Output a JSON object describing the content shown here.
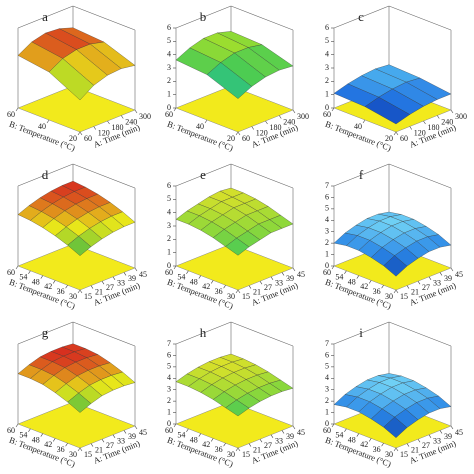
{
  "chart_data": [
    {
      "type": "surface",
      "label": "a",
      "xlabel": "A: Time (min)",
      "ylabel": "B: Temperature (°C)",
      "x": [
        60,
        120,
        180,
        240,
        300
      ],
      "y": [
        20,
        40,
        60
      ],
      "xticks": [
        60,
        120,
        180,
        240,
        300
      ],
      "yticks": [
        20,
        40,
        60
      ],
      "zlim": [
        0,
        7
      ],
      "colormap": [
        "#2db34a",
        "#e8e61a",
        "#d7301f"
      ],
      "values": [
        [
          2.8,
          3.6,
          4.0,
          4.1,
          3.9
        ],
        [
          4.2,
          4.9,
          5.2,
          5.2,
          4.9
        ],
        [
          4.6,
          5.3,
          5.6,
          5.5,
          5.1
        ]
      ]
    },
    {
      "type": "surface",
      "label": "b",
      "xlabel": "A: Time (min)",
      "ylabel": "B: Temperature (°C)",
      "x": [
        60,
        120,
        180,
        240,
        300
      ],
      "y": [
        20,
        40,
        60
      ],
      "xticks": [
        60,
        120,
        180,
        240,
        300
      ],
      "yticks": [
        20,
        40,
        60
      ],
      "zlim": [
        0,
        6
      ],
      "zticks": [
        0,
        1,
        2,
        3,
        4,
        5,
        6
      ],
      "colormap": [
        "#1fb8c9",
        "#3cc85a",
        "#a6df2a"
      ],
      "values": [
        [
          2.5,
          3.0,
          3.3,
          3.4,
          3.3
        ],
        [
          3.4,
          3.9,
          4.2,
          4.2,
          4.0
        ],
        [
          3.6,
          4.1,
          4.4,
          4.4,
          4.1
        ]
      ]
    },
    {
      "type": "surface",
      "label": "c",
      "xlabel": "A: Time (min)",
      "ylabel": "B: Temperature (°C)",
      "x": [
        60,
        120,
        180,
        240,
        300
      ],
      "y": [
        20,
        40,
        60
      ],
      "xticks": [
        60,
        120,
        180,
        240,
        300
      ],
      "yticks": [
        20,
        40,
        60
      ],
      "zlim": [
        0,
        6
      ],
      "zticks": [
        0,
        1,
        2,
        3,
        4,
        5,
        6
      ],
      "colormap": [
        "#0a2c9e",
        "#1f6ee0",
        "#4fb6f0"
      ],
      "values": [
        [
          0.6,
          0.9,
          1.1,
          1.2,
          1.2
        ],
        [
          1.0,
          1.3,
          1.5,
          1.6,
          1.5
        ],
        [
          1.1,
          1.4,
          1.6,
          1.7,
          1.6
        ]
      ]
    },
    {
      "type": "surface",
      "label": "d",
      "xlabel": "A: Time (min)",
      "ylabel": "B: Temperature (°C)",
      "x": [
        15,
        21,
        27,
        33,
        39,
        45
      ],
      "y": [
        30,
        36,
        42,
        48,
        54,
        60
      ],
      "xticks": [
        15,
        21,
        27,
        33,
        39,
        45
      ],
      "yticks": [
        30,
        36,
        42,
        48,
        54,
        60
      ],
      "zlim": [
        0,
        7
      ],
      "colormap": [
        "#2db34a",
        "#e8e61a",
        "#d7301f"
      ],
      "values": [
        [
          3.0,
          3.4,
          3.7,
          3.9,
          4.0,
          4.0
        ],
        [
          3.5,
          3.9,
          4.2,
          4.4,
          4.5,
          4.5
        ],
        [
          3.9,
          4.3,
          4.6,
          4.8,
          4.9,
          4.9
        ],
        [
          4.2,
          4.6,
          4.9,
          5.1,
          5.2,
          5.2
        ],
        [
          4.4,
          4.8,
          5.1,
          5.3,
          5.4,
          5.4
        ],
        [
          4.5,
          4.9,
          5.2,
          5.4,
          5.5,
          5.5
        ]
      ]
    },
    {
      "type": "surface",
      "label": "e",
      "xlabel": "A: Time (min)",
      "ylabel": "B: Temperature (°C)",
      "x": [
        15,
        21,
        27,
        33,
        39,
        45
      ],
      "y": [
        30,
        36,
        42,
        48,
        54,
        60
      ],
      "xticks": [
        15,
        21,
        27,
        33,
        39,
        45
      ],
      "yticks": [
        30,
        36,
        42,
        48,
        54,
        60
      ],
      "zlim": [
        0,
        6
      ],
      "zticks": [
        0,
        1,
        2,
        3,
        4,
        5,
        6
      ],
      "colormap": [
        "#3cc85a",
        "#8fd83a",
        "#d8e02a"
      ],
      "values": [
        [
          2.6,
          2.9,
          3.1,
          3.3,
          3.3,
          3.3
        ],
        [
          2.9,
          3.2,
          3.4,
          3.6,
          3.6,
          3.6
        ],
        [
          3.2,
          3.5,
          3.7,
          3.9,
          3.9,
          3.9
        ],
        [
          3.4,
          3.7,
          3.9,
          4.1,
          4.1,
          4.1
        ],
        [
          3.5,
          3.8,
          4.0,
          4.2,
          4.2,
          4.2
        ],
        [
          3.5,
          3.8,
          4.0,
          4.2,
          4.3,
          4.2
        ]
      ]
    },
    {
      "type": "surface",
      "label": "f",
      "xlabel": "A: Time (min)",
      "ylabel": "B: Temperature (°C)",
      "x": [
        15,
        21,
        27,
        33,
        39,
        45
      ],
      "y": [
        30,
        36,
        42,
        48,
        54,
        60
      ],
      "xticks": [
        15,
        21,
        27,
        33,
        39,
        45
      ],
      "yticks": [
        30,
        36,
        42,
        48,
        54,
        60
      ],
      "zlim": [
        0,
        7
      ],
      "zticks": [
        0,
        1,
        2,
        3,
        4,
        5,
        6,
        7
      ],
      "colormap": [
        "#0a3aa8",
        "#2a86e6",
        "#6fd0f5"
      ],
      "values": [
        [
          1.2,
          1.7,
          2.0,
          2.2,
          2.2,
          2.0
        ],
        [
          1.7,
          2.2,
          2.5,
          2.7,
          2.7,
          2.5
        ],
        [
          2.0,
          2.5,
          2.8,
          3.0,
          3.0,
          2.8
        ],
        [
          2.2,
          2.7,
          3.0,
          3.2,
          3.2,
          3.0
        ],
        [
          2.2,
          2.7,
          3.0,
          3.2,
          3.2,
          3.0
        ],
        [
          2.0,
          2.5,
          2.8,
          3.0,
          3.0,
          2.8
        ]
      ]
    },
    {
      "type": "surface",
      "label": "g",
      "xlabel": "A: Time (min)",
      "ylabel": "B: Temperature (°C)",
      "x": [
        15,
        21,
        27,
        33,
        39,
        45
      ],
      "y": [
        30,
        36,
        42,
        48,
        54,
        60
      ],
      "xticks": [
        15,
        21,
        27,
        33,
        39,
        45
      ],
      "yticks": [
        30,
        36,
        42,
        48,
        54,
        60
      ],
      "zlim": [
        0,
        7
      ],
      "colormap": [
        "#2db34a",
        "#e8e61a",
        "#d7301f"
      ],
      "values": [
        [
          3.1,
          3.5,
          3.8,
          3.9,
          3.9,
          3.8
        ],
        [
          3.6,
          4.0,
          4.3,
          4.4,
          4.4,
          4.3
        ],
        [
          4.0,
          4.4,
          4.7,
          4.8,
          4.8,
          4.7
        ],
        [
          4.3,
          4.7,
          5.0,
          5.1,
          5.1,
          5.0
        ],
        [
          4.4,
          4.8,
          5.1,
          5.2,
          5.2,
          5.1
        ],
        [
          4.4,
          4.8,
          5.1,
          5.2,
          5.2,
          5.1
        ]
      ]
    },
    {
      "type": "surface",
      "label": "h",
      "xlabel": "A: Time (min)",
      "ylabel": "B: Temperature (°C)",
      "x": [
        15,
        21,
        27,
        33,
        39,
        45
      ],
      "y": [
        30,
        36,
        42,
        48,
        54,
        60
      ],
      "xticks": [
        15,
        21,
        27,
        33,
        39,
        45
      ],
      "yticks": [
        30,
        36,
        42,
        48,
        54,
        60
      ],
      "zlim": [
        0,
        7
      ],
      "zticks": [
        0,
        1,
        2,
        3,
        4,
        5,
        6,
        7
      ],
      "colormap": [
        "#3cc85a",
        "#8fd83a",
        "#d8e02a"
      ],
      "values": [
        [
          2.8,
          3.1,
          3.3,
          3.4,
          3.4,
          3.3
        ],
        [
          3.1,
          3.4,
          3.6,
          3.7,
          3.7,
          3.6
        ],
        [
          3.4,
          3.7,
          3.9,
          4.0,
          4.0,
          3.9
        ],
        [
          3.6,
          3.9,
          4.1,
          4.2,
          4.2,
          4.1
        ],
        [
          3.7,
          4.0,
          4.2,
          4.3,
          4.3,
          4.2
        ],
        [
          3.7,
          4.0,
          4.2,
          4.3,
          4.3,
          4.2
        ]
      ]
    },
    {
      "type": "surface",
      "label": "i",
      "xlabel": "A: Time (min)",
      "ylabel": "B: Temperature (°C)",
      "x": [
        15,
        21,
        27,
        33,
        39,
        45
      ],
      "y": [
        30,
        36,
        42,
        48,
        54,
        60
      ],
      "xticks": [
        15,
        21,
        27,
        33,
        39,
        45
      ],
      "yticks": [
        30,
        36,
        42,
        48,
        54,
        60
      ],
      "zlim": [
        0,
        7
      ],
      "zticks": [
        0,
        1,
        2,
        3,
        4,
        5,
        6,
        7
      ],
      "colormap": [
        "#0a3aa8",
        "#2a86e6",
        "#6fd0f5"
      ],
      "values": [
        [
          0.9,
          1.4,
          1.7,
          1.9,
          1.9,
          1.7
        ],
        [
          1.4,
          1.9,
          2.2,
          2.4,
          2.4,
          2.2
        ],
        [
          1.7,
          2.2,
          2.5,
          2.7,
          2.7,
          2.5
        ],
        [
          1.9,
          2.4,
          2.7,
          2.9,
          2.9,
          2.7
        ],
        [
          1.9,
          2.4,
          2.7,
          2.9,
          2.9,
          2.7
        ],
        [
          1.7,
          2.2,
          2.5,
          2.7,
          2.7,
          2.5
        ]
      ]
    }
  ]
}
